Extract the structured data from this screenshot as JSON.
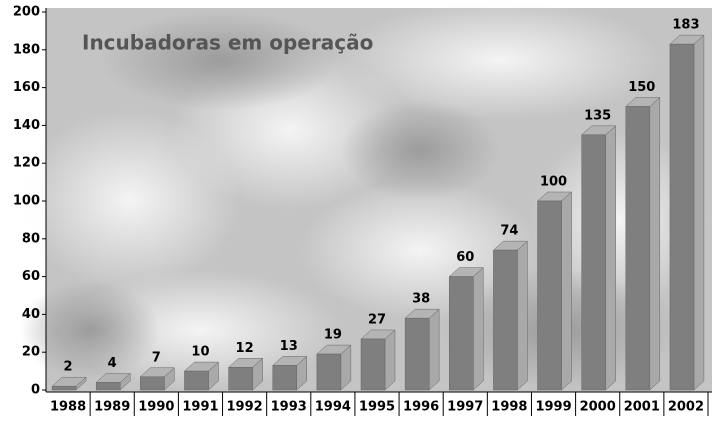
{
  "chart_data": {
    "type": "bar3d",
    "title": "Incubadoras em operação",
    "categories": [
      "1988",
      "1989",
      "1990",
      "1991",
      "1992",
      "1993",
      "1994",
      "1995",
      "1996",
      "1997",
      "1998",
      "1999",
      "2000",
      "2001",
      "2002"
    ],
    "values": [
      2,
      4,
      7,
      10,
      12,
      13,
      19,
      27,
      38,
      60,
      74,
      100,
      135,
      150,
      183
    ],
    "color": "#7f7f7f",
    "ylim": [
      0,
      200
    ],
    "yticks": [
      0,
      20,
      40,
      60,
      80,
      100,
      120,
      140,
      160,
      180,
      200
    ],
    "grid": false,
    "data_labels": true
  }
}
